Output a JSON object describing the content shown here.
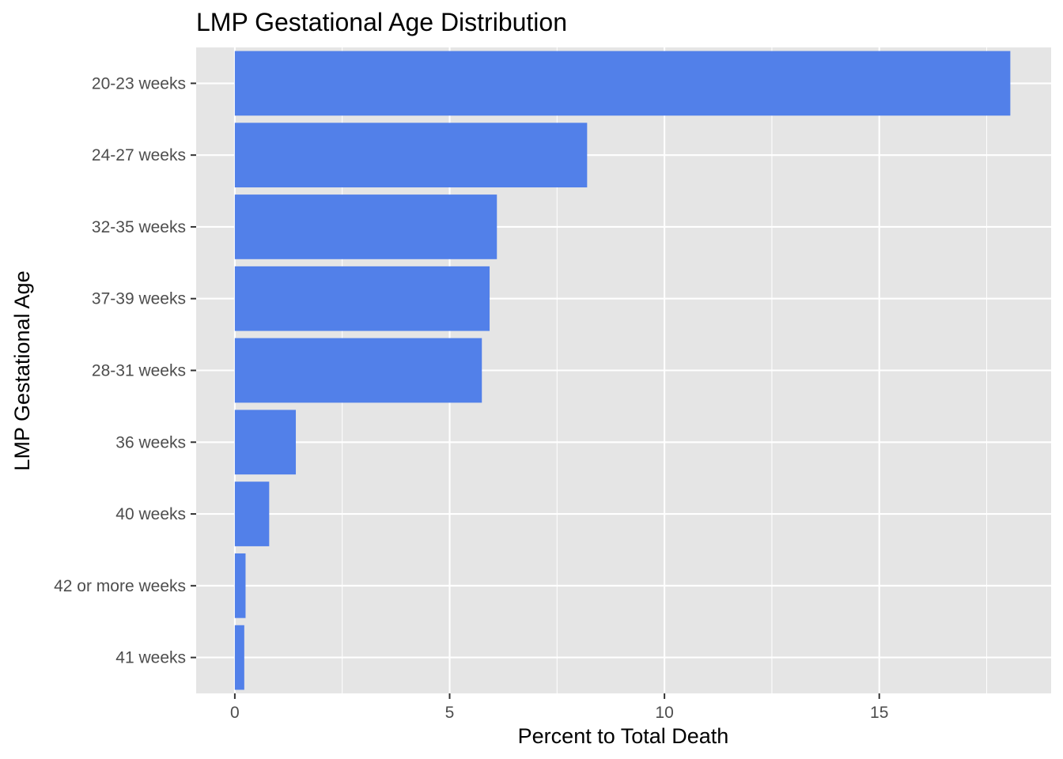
{
  "chart_data": {
    "type": "bar",
    "orientation": "horizontal",
    "title": "LMP Gestational Age Distribution",
    "xlabel": "Percent to Total Death",
    "ylabel": "LMP Gestational Age",
    "categories": [
      "20-23 weeks",
      "24-27 weeks",
      "32-35 weeks",
      "37-39 weeks",
      "28-31 weeks",
      "36 weeks",
      "40 weeks",
      "42 or more weeks",
      "41 weeks"
    ],
    "values": [
      18.05,
      8.2,
      6.1,
      5.93,
      5.75,
      1.42,
      0.8,
      0.25,
      0.22
    ],
    "xlim": [
      -0.9,
      19.0
    ],
    "xticks": [
      0,
      5,
      10,
      15
    ],
    "xtick_labels": [
      "0",
      "5",
      "10",
      "15"
    ],
    "grid": true,
    "bar_color": "#5280e9",
    "panel_color": "#e5e5e5",
    "gridline_color": "#ffffff"
  }
}
